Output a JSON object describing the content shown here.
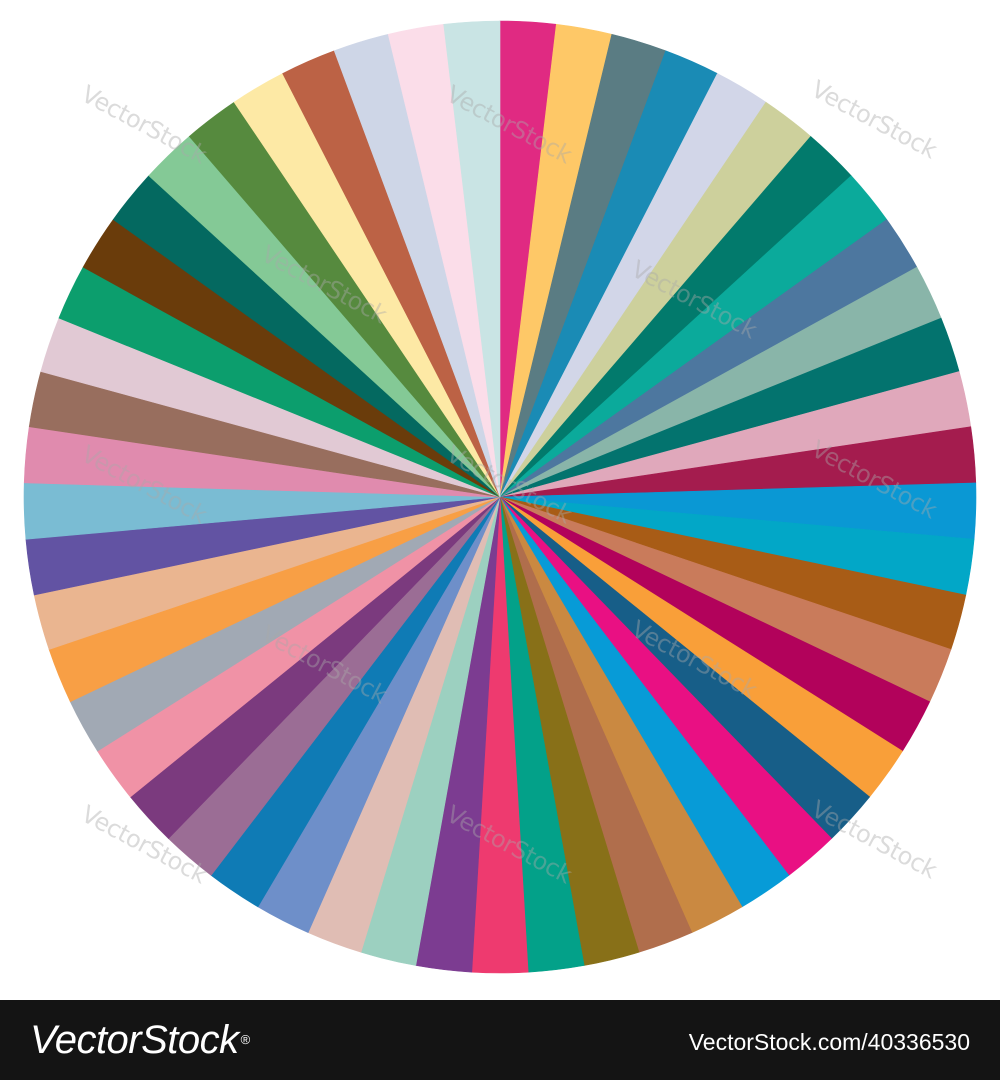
{
  "wheel": {
    "colors": [
      "#e02a82",
      "#fec867",
      "#5a7c83",
      "#1a8bb5",
      "#d2d6e8",
      "#cdd09c",
      "#027a6c",
      "#0baa9b",
      "#4d779f",
      "#89b5a9",
      "#03736e",
      "#e0a8bb",
      "#a41c4e",
      "#0a98d4",
      "#02a7c7",
      "#a85c16",
      "#c97b5b",
      "#b2025b",
      "#f99f39",
      "#175e88",
      "#e91083",
      "#079bd7",
      "#ca8941",
      "#b06e4c",
      "#887018",
      "#03a189",
      "#ee3a6f",
      "#7c3c91",
      "#9cd0c0",
      "#e0bdb4",
      "#6e8fc9",
      "#0f7bb5",
      "#9b6d95",
      "#7b3a7e",
      "#f092a6",
      "#a1a9b4",
      "#f89f45",
      "#eab590",
      "#6253a3",
      "#7abcd3",
      "#e08bae",
      "#986e5e",
      "#e1c9d4",
      "#0c9e6d",
      "#6a3c0b",
      "#046960",
      "#84c996",
      "#568a3e",
      "#fde9a5",
      "#bc6245",
      "#ced6e7",
      "#fbdde9",
      "#c9e4e4"
    ]
  },
  "watermark": {
    "text": "VectorStock"
  },
  "footer": {
    "brand": "VectorStock",
    "registered": "®",
    "image_id": "VectorStock.com/40336530"
  }
}
